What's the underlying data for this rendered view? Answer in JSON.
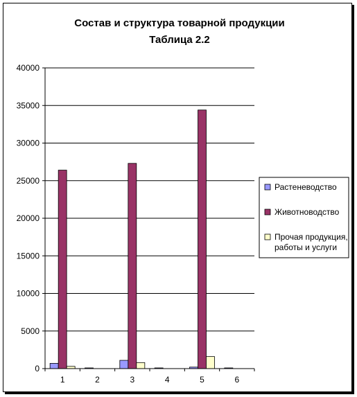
{
  "chart_data": {
    "type": "bar",
    "title": "Состав и структура товарной продукции",
    "subtitle": "Таблица 2.2",
    "xlabel": "",
    "ylabel": "",
    "categories": [
      "1",
      "2",
      "3",
      "4",
      "5",
      "6"
    ],
    "ylim": [
      0,
      40000
    ],
    "yticks": [
      0,
      5000,
      10000,
      15000,
      20000,
      25000,
      30000,
      35000,
      40000
    ],
    "grid": true,
    "legend_position": "right",
    "series": [
      {
        "name": "Растеневодство",
        "color": "#9999ff",
        "values": [
          700,
          40,
          1100,
          30,
          200,
          20
        ]
      },
      {
        "name": "Животноводство",
        "color": "#993366",
        "values": [
          26400,
          0,
          27300,
          0,
          34400,
          0
        ]
      },
      {
        "name": "Прочая продукция, работы и услуги",
        "color": "#ffffcc",
        "values": [
          300,
          0,
          800,
          0,
          1600,
          0
        ]
      }
    ]
  }
}
